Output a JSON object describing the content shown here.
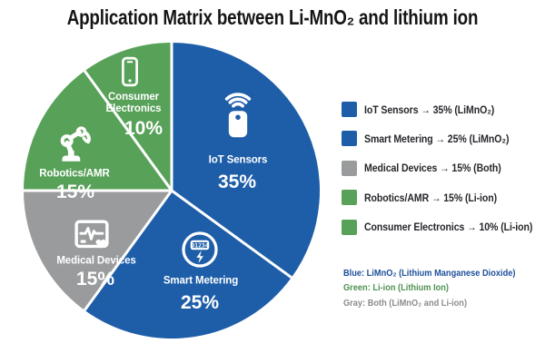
{
  "title": "Application Matrix between Li-MnO₂ and lithium ion",
  "chart_data": {
    "type": "pie",
    "title": "Application Matrix between Li-MnO₂ and lithium ion",
    "start_angle_deg": 0,
    "direction": "clockwise",
    "labels_on_slices": true,
    "legend_position": "right",
    "slices": [
      {
        "label": "IoT Sensors",
        "pct": 35,
        "pct_label": "35%",
        "chemistry": "LiMnO₂",
        "color": "#1e5ea8",
        "icon": "iot-sensor-icon"
      },
      {
        "label": "Smart Metering",
        "pct": 25,
        "pct_label": "25%",
        "chemistry": "LiMnO₂",
        "color": "#1e5ea8",
        "icon": "smart-meter-icon"
      },
      {
        "label": "Medical Devices",
        "pct": 15,
        "pct_label": "15%",
        "chemistry": "Both",
        "color": "#9a9b9d",
        "icon": "medical-monitor-icon"
      },
      {
        "label": "Robotics/AMR",
        "pct": 15,
        "pct_label": "15%",
        "chemistry": "Li-ion",
        "color": "#58a159",
        "icon": "robot-arm-icon"
      },
      {
        "label": "Consumer Electronics",
        "pct": 10,
        "pct_label": "10%",
        "chemistry": "Li-ion",
        "color": "#58a159",
        "icon": "smartphone-icon"
      }
    ],
    "meter_display": "01234"
  },
  "legend": {
    "items": [
      {
        "display": "IoT Sensors → 35% (LiMnO₂)",
        "color": "#1e5ea8"
      },
      {
        "display": "Smart Metering → 25% (LiMnO₂)",
        "color": "#1e5ea8"
      },
      {
        "display": "Medical Devices → 15% (Both)",
        "color": "#9a9b9d"
      },
      {
        "display": "Robotics/AMR → 15% (Li-ion)",
        "color": "#58a159"
      },
      {
        "display": "Consumer Electronics → 10% (Li-ion)",
        "color": "#58a159"
      }
    ]
  },
  "notes": {
    "lines": [
      {
        "text": "Blue: LiMnO₂ (Lithium Manganese Dioxide)",
        "color": "#1d4f9c"
      },
      {
        "text": "Green: Li-ion (Lithium Ion)",
        "color": "#4f9150"
      },
      {
        "text": "Gray: Both (LiMnO₂ and Li-ion)",
        "color": "#8c8c8e"
      }
    ]
  },
  "colors": {
    "blue": "#1e5ea8",
    "green": "#58a159",
    "gray": "#9a9b9d",
    "slice_text": "#ffffff",
    "legend_text": "#27272c",
    "title_text": "#151515",
    "background": "#ffffff"
  }
}
